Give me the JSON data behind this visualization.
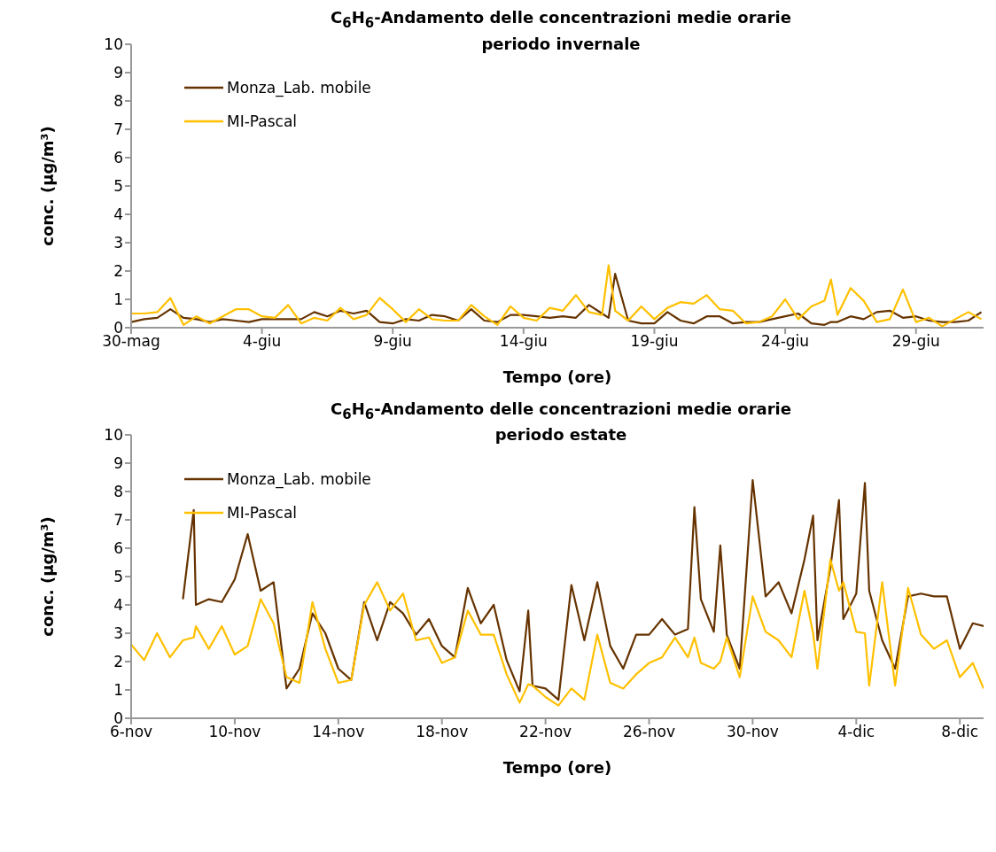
{
  "chart_data": [
    {
      "type": "line",
      "title": "C$_{6}$H$_{6}$-Andamento delle concentrazioni medie orarie",
      "subtitle": "periodo invernale",
      "xlabel": "Tempo (ore)",
      "ylabel": "conc. (µg/m³)",
      "legend": "top left",
      "grid": false,
      "xlim": [
        "--05-30",
        "--07-01T14:00"
      ],
      "xticks": [
        {
          "value": "--05-30",
          "label": "30-mag"
        },
        {
          "value": "--06-04",
          "label": "4-giu"
        },
        {
          "value": "--06-09",
          "label": "9-giu"
        },
        {
          "value": "--06-14",
          "label": "14-giu"
        },
        {
          "value": "--06-19",
          "label": "19-giu"
        },
        {
          "value": "--06-24",
          "label": "24-giu"
        },
        {
          "value": "--06-29",
          "label": "29-giu"
        }
      ],
      "ylim": [
        0,
        10
      ],
      "yticks": [
        0,
        1,
        2,
        3,
        4,
        5,
        6,
        7,
        8,
        9,
        10
      ],
      "x": [
        "--05-30",
        "--05-30T12:00",
        "--05-31",
        "--05-31T12:00",
        "--06-01",
        "--06-01T12:00",
        "--06-02",
        "--06-02T12:00",
        "--06-03",
        "--06-03T12:00",
        "--06-04",
        "--06-04T12:00",
        "--06-05",
        "--06-05T12:00",
        "--06-06",
        "--06-06T12:00",
        "--06-07",
        "--06-07T12:00",
        "--06-08",
        "--06-08T12:00",
        "--06-09",
        "--06-09T12:00",
        "--06-10",
        "--06-10T12:00",
        "--06-11",
        "--06-11T12:00",
        "--06-12",
        "--06-12T12:00",
        "--06-13",
        "--06-13T12:00",
        "--06-14",
        "--06-14T12:00",
        "--06-15",
        "--06-15T12:00",
        "--06-16",
        "--06-16T12:00",
        "--06-17",
        "--06-17T06:00",
        "--06-17T12:00",
        "--06-18",
        "--06-18T12:00",
        "--06-19",
        "--06-19T12:00",
        "--06-20",
        "--06-20T12:00",
        "--06-21",
        "--06-21T12:00",
        "--06-22",
        "--06-22T12:00",
        "--06-23",
        "--06-23T12:00",
        "--06-24",
        "--06-24T12:00",
        "--06-25",
        "--06-25T12:00",
        "--06-25T18:00",
        "--06-26",
        "--06-26T12:00",
        "--06-27",
        "--06-27T12:00",
        "--06-28",
        "--06-28T12:00",
        "--06-29",
        "--06-29T12:00",
        "--06-30",
        "--06-30T12:00",
        "--07-01",
        "--07-01T12:00"
      ],
      "series": [
        {
          "name": "Monza_Lab. mobile",
          "color": "#663300",
          "values": [
            0.2,
            0.3,
            0.35,
            0.65,
            0.35,
            0.3,
            0.2,
            0.3,
            0.25,
            0.2,
            0.3,
            0.3,
            0.3,
            0.3,
            0.55,
            0.4,
            0.6,
            0.5,
            0.6,
            0.2,
            0.15,
            0.3,
            0.25,
            0.45,
            0.4,
            0.25,
            0.65,
            0.25,
            0.2,
            0.45,
            0.45,
            0.4,
            0.35,
            0.4,
            0.35,
            0.8,
            0.5,
            0.35,
            1.9,
            0.25,
            0.15,
            0.15,
            0.55,
            0.25,
            0.15,
            0.4,
            0.4,
            0.15,
            0.2,
            0.2,
            0.3,
            0.4,
            0.5,
            0.15,
            0.1,
            0.2,
            0.2,
            0.4,
            0.3,
            0.55,
            0.6,
            0.35,
            0.4,
            0.25,
            0.2,
            0.2,
            0.25,
            0.55
          ]
        },
        {
          "name": "MI-Pascal",
          "color": "#ffc000",
          "values": [
            0.5,
            0.5,
            0.55,
            1.05,
            0.1,
            0.4,
            0.15,
            0.4,
            0.65,
            0.65,
            0.4,
            0.35,
            0.8,
            0.15,
            0.35,
            0.25,
            0.7,
            0.3,
            0.45,
            1.05,
            0.65,
            0.2,
            0.65,
            0.3,
            0.25,
            0.25,
            0.8,
            0.4,
            0.1,
            0.75,
            0.35,
            0.25,
            0.7,
            0.6,
            1.15,
            0.55,
            0.45,
            2.2,
            0.6,
            0.25,
            0.75,
            0.3,
            0.7,
            0.9,
            0.85,
            1.15,
            0.65,
            0.6,
            0.15,
            0.2,
            0.4,
            1.0,
            0.3,
            0.75,
            0.95,
            1.7,
            0.45,
            1.4,
            0.95,
            0.2,
            0.3,
            1.35,
            0.2,
            0.35,
            0.05,
            0.3,
            0.55,
            0.3
          ]
        }
      ]
    },
    {
      "type": "line",
      "title": "C$_{6}$H$_{6}$-Andamento delle concentrazioni medie orarie",
      "subtitle": "periodo estate",
      "xlabel": "Tempo (ore)",
      "ylabel": "conc. (µg/m³)",
      "legend": "top left",
      "grid": false,
      "xlim": [
        "--11-06",
        "--12-08T22:00"
      ],
      "xticks": [
        {
          "value": "--11-06",
          "label": "6-nov"
        },
        {
          "value": "--11-10",
          "label": "10-nov"
        },
        {
          "value": "--11-14",
          "label": "14-nov"
        },
        {
          "value": "--11-18",
          "label": "18-nov"
        },
        {
          "value": "--11-22",
          "label": "22-nov"
        },
        {
          "value": "--11-26",
          "label": "26-nov"
        },
        {
          "value": "--11-30",
          "label": "30-nov"
        },
        {
          "value": "--12-04",
          "label": "4-dic"
        },
        {
          "value": "--12-08",
          "label": "8-dic"
        }
      ],
      "ylim": [
        0,
        10
      ],
      "yticks": [
        0,
        1,
        2,
        3,
        4,
        5,
        6,
        7,
        8,
        9,
        10
      ],
      "x": [
        "--11-06",
        "--11-06T12:00",
        "--11-07",
        "--11-07T12:00",
        "--11-08",
        "--11-08T10:00",
        "--11-08T12:00",
        "--11-09",
        "--11-09T12:00",
        "--11-10",
        "--11-10T12:00",
        "--11-11",
        "--11-11T12:00",
        "--11-12",
        "--11-12T12:00",
        "--11-13",
        "--11-13T12:00",
        "--11-14",
        "--11-14T12:00",
        "--11-15",
        "--11-15T12:00",
        "--11-16",
        "--11-16T12:00",
        "--11-17",
        "--11-17T12:00",
        "--11-18",
        "--11-18T12:00",
        "--11-19",
        "--11-19T12:00",
        "--11-20",
        "--11-20T12:00",
        "--11-21",
        "--11-21T08:00",
        "--11-21T12:00",
        "--11-22",
        "--11-22T12:00",
        "--11-23",
        "--11-23T12:00",
        "--11-24",
        "--11-24T12:00",
        "--11-25",
        "--11-25T12:00",
        "--11-26",
        "--11-26T12:00",
        "--11-27",
        "--11-27T12:00",
        "--11-27T18:00",
        "--11-28",
        "--11-28T12:00",
        "--11-28T18:00",
        "--11-29",
        "--11-29T12:00",
        "--11-30",
        "--11-30T12:00",
        "--12-01",
        "--12-01T12:00",
        "--12-02",
        "--12-02T08:00",
        "--12-02T12:00",
        "--12-03",
        "--12-03T08:00",
        "--12-03T12:00",
        "--12-04",
        "--12-04T08:00",
        "--12-04T12:00",
        "--12-05",
        "--12-05T12:00",
        "--12-06",
        "--12-06T12:00",
        "--12-07",
        "--12-07T12:00",
        "--12-08",
        "--12-08T12:00",
        "--12-08T22:00"
      ],
      "series": [
        {
          "name": "Monza_Lab. mobile",
          "color": "#663300",
          "values": [
            null,
            null,
            null,
            null,
            4.2,
            7.35,
            4.0,
            4.2,
            4.1,
            4.9,
            6.5,
            4.5,
            4.8,
            1.05,
            1.75,
            3.7,
            3.0,
            1.75,
            1.35,
            4.1,
            2.75,
            4.1,
            3.7,
            2.95,
            3.5,
            2.55,
            2.15,
            4.6,
            3.35,
            4.0,
            2.05,
            0.95,
            3.8,
            1.15,
            1.05,
            0.65,
            4.7,
            2.75,
            4.8,
            2.55,
            1.75,
            2.95,
            2.95,
            3.5,
            2.95,
            3.15,
            7.45,
            4.2,
            3.05,
            6.1,
            2.95,
            1.75,
            8.4,
            4.3,
            4.8,
            3.7,
            5.6,
            7.15,
            2.75,
            5.3,
            7.7,
            3.5,
            4.4,
            8.3,
            4.5,
            2.75,
            1.75,
            4.3,
            4.4,
            4.3,
            4.3,
            2.45,
            3.35,
            3.25
          ]
        },
        {
          "name": "MI-Pascal",
          "color": "#ffc000",
          "values": [
            2.6,
            2.05,
            3.0,
            2.15,
            2.75,
            2.85,
            3.25,
            2.45,
            3.25,
            2.25,
            2.55,
            4.2,
            3.35,
            1.45,
            1.25,
            4.1,
            2.45,
            1.25,
            1.35,
            4.0,
            4.8,
            3.8,
            4.4,
            2.75,
            2.85,
            1.95,
            2.15,
            3.8,
            2.95,
            2.95,
            1.55,
            0.55,
            1.2,
            1.15,
            0.75,
            0.45,
            1.05,
            0.65,
            2.95,
            1.25,
            1.05,
            1.55,
            1.95,
            2.15,
            2.85,
            2.15,
            2.85,
            1.95,
            1.75,
            2.0,
            2.85,
            1.45,
            4.3,
            3.05,
            2.75,
            2.15,
            4.5,
            3.0,
            1.75,
            5.6,
            4.5,
            4.8,
            3.05,
            3.0,
            1.15,
            4.8,
            1.15,
            4.6,
            2.95,
            2.45,
            2.75,
            1.45,
            1.95,
            1.05
          ]
        }
      ]
    }
  ]
}
